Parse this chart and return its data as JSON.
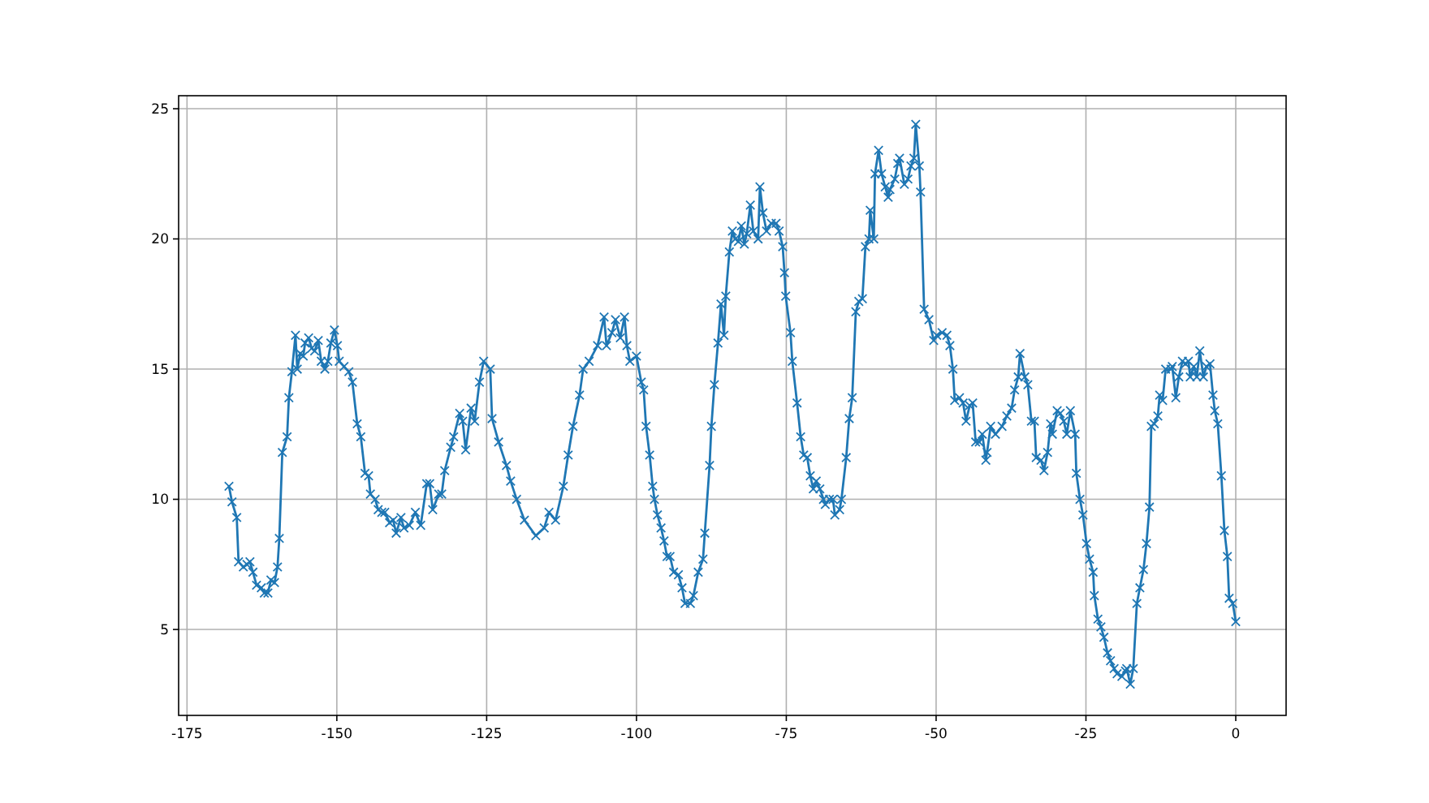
{
  "chart_data": {
    "type": "line",
    "xlim": [
      -176.4,
      8.4
    ],
    "ylim": [
      1.7,
      25.5
    ],
    "xticks": [
      -175,
      -150,
      -125,
      -100,
      -75,
      -50,
      -25,
      0
    ],
    "yticks": [
      5,
      10,
      15,
      20,
      25
    ],
    "grid": true,
    "marker": "cross",
    "line_style": "solid",
    "series": [
      {
        "color": "#1f77b4",
        "x": [
          -168,
          -167.5,
          -166.7,
          -166.4,
          -165.6,
          -165,
          -164.5,
          -164,
          -163.4,
          -162.6,
          -162.1,
          -161.5,
          -161,
          -160.4,
          -159.9,
          -159.6,
          -159.1,
          -158.3,
          -158,
          -157.5,
          -156.9,
          -156.6,
          -156.1,
          -155.6,
          -155.3,
          -154.7,
          -154.2,
          -153.7,
          -153.1,
          -152.6,
          -152,
          -151.5,
          -151,
          -150.4,
          -149.9,
          -149.6,
          -148.8,
          -148,
          -147.4,
          -146.6,
          -146,
          -145.3,
          -144.7,
          -144.4,
          -143.6,
          -143.1,
          -142.5,
          -142,
          -141.2,
          -140.6,
          -140.1,
          -139.3,
          -138.8,
          -137.9,
          -136.9,
          -136,
          -135,
          -134.5,
          -134,
          -133,
          -132.5,
          -132,
          -131,
          -130.5,
          -129.5,
          -129,
          -128.5,
          -127.6,
          -127,
          -126.2,
          -125.5,
          -124.4,
          -124.1,
          -123,
          -121.7,
          -121,
          -120,
          -118.7,
          -116.8,
          -115.4,
          -114.6,
          -113.5,
          -112.2,
          -111.4,
          -110.6,
          -109.5,
          -108.9,
          -107.9,
          -106.5,
          -105.4,
          -105,
          -104.1,
          -103.5,
          -102.7,
          -102,
          -101.6,
          -101.1,
          -100,
          -99.2,
          -98.8,
          -98.4,
          -97.8,
          -97.3,
          -97,
          -96.5,
          -95.9,
          -95.4,
          -94.9,
          -94.4,
          -93.8,
          -93,
          -92.4,
          -91.9,
          -91,
          -90.5,
          -89.7,
          -88.9,
          -88.6,
          -87.8,
          -87.5,
          -87,
          -86.4,
          -85.9,
          -85.4,
          -85.1,
          -84.5,
          -84,
          -83.5,
          -83,
          -82.5,
          -82,
          -81.6,
          -81,
          -80.5,
          -79.7,
          -79.4,
          -78.9,
          -78.3,
          -77.5,
          -76.7,
          -76.2,
          -75.6,
          -75.3,
          -75.1,
          -74.3,
          -74,
          -73.2,
          -72.6,
          -72.1,
          -71.5,
          -71,
          -70.5,
          -70,
          -69.4,
          -68.8,
          -68.5,
          -67.8,
          -67.2,
          -66.9,
          -66.1,
          -65.8,
          -65,
          -64.5,
          -64,
          -63.4,
          -62.9,
          -62.3,
          -61.8,
          -61.2,
          -61,
          -60.4,
          -60.2,
          -59.6,
          -59.1,
          -58.5,
          -58,
          -57.7,
          -56.9,
          -56.4,
          -56.1,
          -55.3,
          -54.7,
          -54.2,
          -53.7,
          -53.4,
          -52.8,
          -52.6,
          -52,
          -51.2,
          -50.4,
          -49.9,
          -49,
          -48.2,
          -47.7,
          -47.2,
          -46.9,
          -46.1,
          -45.5,
          -45,
          -44.4,
          -43.9,
          -43.4,
          -42.8,
          -42.3,
          -41.7,
          -41.5,
          -40.9,
          -40.1,
          -39,
          -38.2,
          -37.4,
          -36.9,
          -36.3,
          -36,
          -35.2,
          -34.7,
          -34.1,
          -33.6,
          -33.3,
          -32.5,
          -32,
          -31.4,
          -30.9,
          -30.6,
          -29.8,
          -29.3,
          -28.7,
          -28.2,
          -27.6,
          -26.8,
          -26.6,
          -26,
          -25.5,
          -24.9,
          -24.4,
          -23.8,
          -23.6,
          -23,
          -22.5,
          -22,
          -21.4,
          -20.9,
          -20.3,
          -19.8,
          -19,
          -18.4,
          -18.2,
          -17.6,
          -17.1,
          -16.5,
          -16,
          -15.4,
          -14.9,
          -14.4,
          -14.1,
          -13.6,
          -13,
          -12.7,
          -12.2,
          -11.7,
          -10.8,
          -10.6,
          -10,
          -9.5,
          -8.9,
          -8.4,
          -7.9,
          -7.6,
          -7,
          -6.5,
          -6,
          -5.4,
          -4.9,
          -4.3,
          -3.8,
          -3.5,
          -3,
          -2.4,
          -1.9,
          -1.4,
          -1.1,
          -0.5,
          0
        ],
        "values": [
          10.5,
          9.9,
          9.3,
          7.6,
          7.4,
          7.5,
          7.6,
          7.2,
          6.7,
          6.6,
          6.4,
          6.4,
          6.9,
          6.8,
          7.4,
          8.5,
          11.8,
          12.4,
          13.9,
          14.9,
          16.3,
          15.0,
          15.6,
          15.5,
          16.0,
          16.2,
          15.8,
          15.7,
          16.1,
          15.3,
          15.0,
          15.3,
          16.0,
          16.5,
          15.9,
          15.3,
          15.1,
          14.9,
          14.5,
          12.9,
          12.4,
          11.0,
          10.9,
          10.2,
          10.0,
          9.6,
          9.5,
          9.5,
          9.1,
          9.2,
          8.7,
          9.3,
          8.9,
          9.0,
          9.5,
          9.0,
          10.6,
          10.6,
          9.6,
          10.2,
          10.2,
          11.1,
          12.0,
          12.4,
          13.3,
          13.0,
          11.9,
          13.5,
          13.0,
          14.5,
          15.3,
          15.0,
          13.1,
          12.2,
          11.3,
          10.7,
          10.0,
          9.2,
          8.6,
          8.9,
          9.5,
          9.2,
          10.5,
          11.7,
          12.8,
          14.0,
          15.0,
          15.3,
          15.9,
          17.0,
          15.9,
          16.4,
          16.9,
          16.2,
          17.0,
          15.9,
          15.3,
          15.5,
          14.5,
          14.2,
          12.8,
          11.7,
          10.5,
          10.0,
          9.4,
          8.9,
          8.4,
          7.8,
          7.8,
          7.2,
          7.1,
          6.6,
          6.0,
          6.0,
          6.3,
          7.2,
          7.7,
          8.7,
          11.3,
          12.8,
          14.4,
          16.0,
          17.5,
          16.3,
          17.8,
          19.5,
          20.3,
          20.0,
          19.9,
          20.5,
          19.8,
          20.2,
          21.3,
          20.3,
          20.0,
          22.0,
          21.0,
          20.3,
          20.6,
          20.6,
          20.3,
          19.7,
          18.7,
          17.8,
          16.4,
          15.3,
          13.7,
          12.4,
          11.7,
          11.6,
          10.9,
          10.4,
          10.7,
          10.4,
          10.0,
          9.8,
          10.0,
          10.0,
          9.4,
          9.6,
          10.0,
          11.6,
          13.1,
          13.9,
          17.2,
          17.6,
          17.7,
          19.7,
          20.0,
          21.1,
          20.0,
          22.5,
          23.4,
          22.5,
          22.0,
          21.6,
          21.9,
          22.3,
          22.9,
          23.1,
          22.1,
          22.3,
          22.8,
          23.1,
          24.4,
          22.8,
          21.8,
          17.3,
          16.9,
          16.1,
          16.3,
          16.4,
          16.3,
          15.9,
          15.0,
          13.8,
          13.9,
          13.7,
          13.0,
          13.6,
          13.7,
          12.2,
          12.2,
          12.5,
          11.5,
          11.8,
          12.8,
          12.5,
          12.8,
          13.2,
          13.5,
          14.2,
          14.7,
          15.6,
          14.7,
          14.4,
          13.0,
          13.0,
          11.6,
          11.5,
          11.1,
          11.8,
          12.9,
          12.5,
          13.4,
          13.3,
          13.0,
          12.5,
          13.4,
          12.5,
          11.0,
          10.0,
          9.4,
          8.3,
          7.7,
          7.2,
          6.3,
          5.4,
          5.1,
          4.7,
          4.1,
          3.8,
          3.5,
          3.3,
          3.2,
          3.4,
          3.5,
          2.9,
          3.5,
          6.0,
          6.6,
          7.3,
          8.3,
          9.7,
          12.8,
          12.9,
          13.2,
          14.0,
          13.8,
          15.0,
          15.0,
          15.1,
          13.9,
          14.7,
          15.3,
          15.2,
          15.3,
          14.7,
          15.1,
          14.7,
          15.7,
          14.7,
          15.1,
          15.2,
          14.0,
          13.4,
          12.9,
          10.9,
          8.8,
          7.8,
          6.2,
          6.0,
          5.3
        ]
      }
    ]
  }
}
